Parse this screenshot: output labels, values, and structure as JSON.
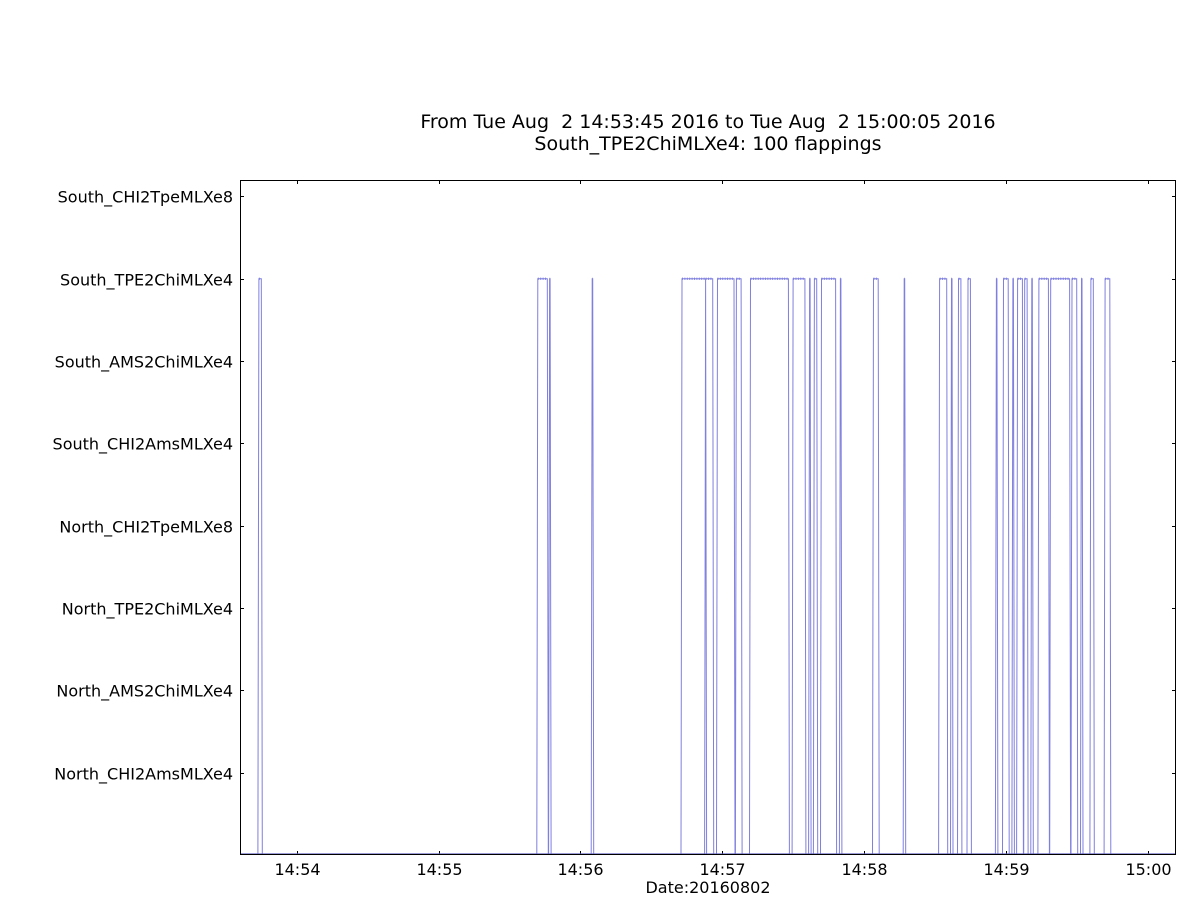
{
  "chart_data": {
    "type": "line",
    "title": "From Tue Aug  2 14:53:45 2016 to Tue Aug  2 15:00:05 2016",
    "subtitle": "South_TPE2ChiMLXe4: 100 flappings",
    "xlabel": "Date:20160802",
    "ylabel": "",
    "grid": false,
    "legend": "none",
    "x_range": [
      "14:53:36",
      "15:00:12"
    ],
    "x_ticks": [
      "14:54",
      "14:55",
      "14:56",
      "14:57",
      "14:58",
      "14:59",
      "15:00"
    ],
    "y_categories": [
      "North_CHI2AmsMLXe4",
      "North_AMS2ChiMLXe4",
      "North_TPE2ChiMLXe4",
      "North_CHI2TpeMLXe8",
      "South_CHI2AmsMLXe4",
      "South_AMS2ChiMLXe4",
      "South_TPE2ChiMLXe4",
      "South_CHI2TpeMLXe8"
    ],
    "y_ticks": [
      1,
      2,
      3,
      4,
      5,
      6,
      7,
      8
    ],
    "ylim": [
      0,
      8.2
    ],
    "series": [
      {
        "color": "#7f7fdf",
        "up_value": 7,
        "down_value": 0,
        "up_intervals": [
          [
            "14:53:44",
            "14:53:45"
          ],
          [
            "14:55:42",
            "14:55:46"
          ],
          [
            "14:55:47",
            "14:55:47"
          ],
          [
            "14:56:05",
            "14:56:05"
          ],
          [
            "14:56:43",
            "14:56:53"
          ],
          [
            "14:56:53",
            "14:56:56"
          ],
          [
            "14:56:58",
            "14:57:05"
          ],
          [
            "14:57:06",
            "14:57:08"
          ],
          [
            "14:57:12",
            "14:57:28"
          ],
          [
            "14:57:30",
            "14:57:35"
          ],
          [
            "14:57:37",
            "14:57:37"
          ],
          [
            "14:57:39",
            "14:57:40"
          ],
          [
            "14:57:42",
            "14:57:48"
          ],
          [
            "14:57:50",
            "14:57:50"
          ],
          [
            "14:58:04",
            "14:58:06"
          ],
          [
            "14:58:17",
            "14:58:17"
          ],
          [
            "14:58:32",
            "14:58:35"
          ],
          [
            "14:58:37",
            "14:58:37"
          ],
          [
            "14:58:40",
            "14:58:41"
          ],
          [
            "14:58:44",
            "14:58:45"
          ],
          [
            "14:58:56",
            "14:58:56"
          ],
          [
            "14:58:59",
            "14:59:01"
          ],
          [
            "14:59:03",
            "14:59:03"
          ],
          [
            "14:59:05",
            "14:59:07"
          ],
          [
            "14:59:08",
            "14:59:09"
          ],
          [
            "14:59:11",
            "14:59:11"
          ],
          [
            "14:59:14",
            "14:59:18"
          ],
          [
            "14:59:19",
            "14:59:27"
          ],
          [
            "14:59:28",
            "14:59:30"
          ],
          [
            "14:59:32",
            "14:59:32"
          ],
          [
            "14:59:36",
            "14:59:37"
          ],
          [
            "14:59:42",
            "14:59:44"
          ]
        ]
      }
    ]
  }
}
